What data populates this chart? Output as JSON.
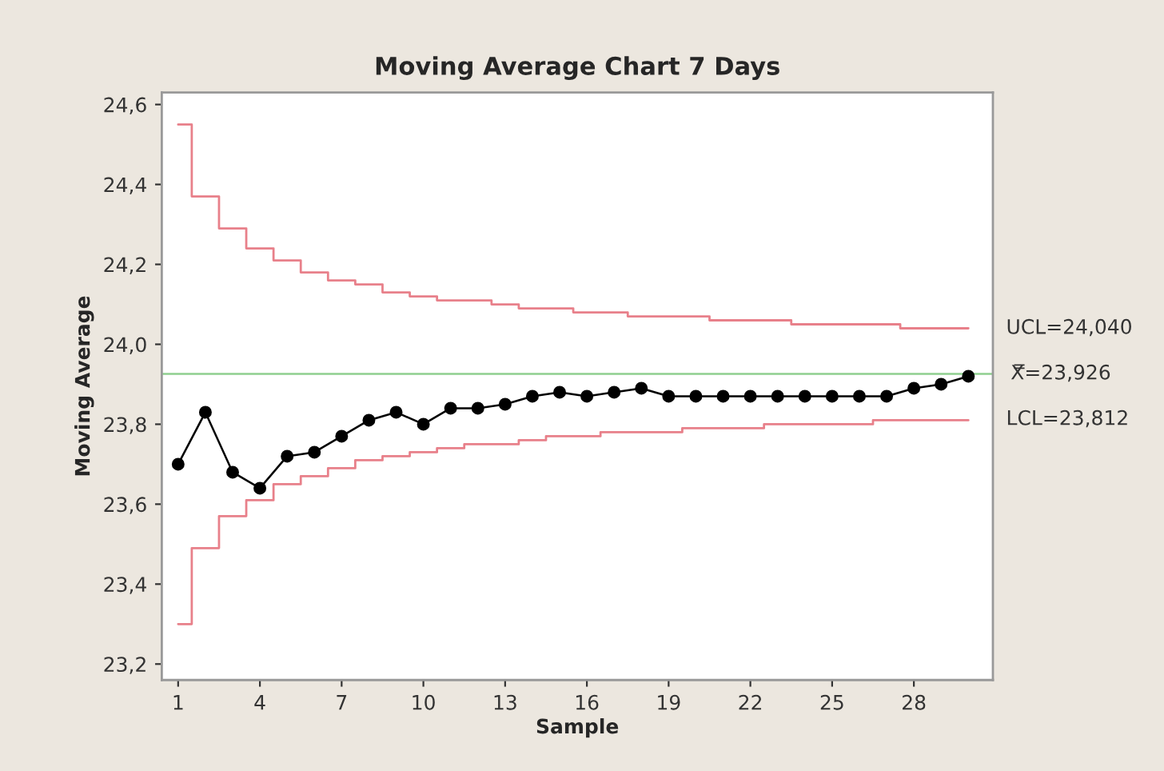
{
  "chart_data": {
    "type": "line",
    "title": "Moving Average Chart 7 Days",
    "xlabel": "Sample",
    "ylabel": "Moving Average",
    "x": [
      1,
      2,
      3,
      4,
      5,
      6,
      7,
      8,
      9,
      10,
      11,
      12,
      13,
      14,
      15,
      16,
      17,
      18,
      19,
      20,
      21,
      22,
      23,
      24,
      25,
      26,
      27,
      28,
      29,
      30
    ],
    "series": [
      {
        "type": "step",
        "color": "#e8808a",
        "line_style": "solid",
        "marker": "none",
        "values": [
          24.55,
          24.37,
          24.29,
          24.24,
          24.21,
          24.18,
          24.16,
          24.15,
          24.13,
          24.12,
          24.11,
          24.11,
          24.1,
          24.09,
          24.09,
          24.08,
          24.08,
          24.07,
          24.07,
          24.07,
          24.06,
          24.06,
          24.06,
          24.05,
          24.05,
          24.05,
          24.05,
          24.04,
          24.04,
          24.04
        ]
      },
      {
        "type": "step",
        "color": "#e8808a",
        "line_style": "solid",
        "marker": "none",
        "values": [
          23.3,
          23.49,
          23.57,
          23.61,
          23.65,
          23.67,
          23.69,
          23.71,
          23.72,
          23.73,
          23.74,
          23.75,
          23.75,
          23.76,
          23.77,
          23.77,
          23.78,
          23.78,
          23.78,
          23.79,
          23.79,
          23.79,
          23.8,
          23.8,
          23.8,
          23.8,
          23.81,
          23.81,
          23.81,
          23.81
        ]
      },
      {
        "type": "line",
        "color": "#000000",
        "line_style": "solid",
        "marker": "circle",
        "values": [
          23.7,
          23.83,
          23.68,
          23.64,
          23.72,
          23.73,
          23.77,
          23.81,
          23.83,
          23.8,
          23.84,
          23.84,
          23.85,
          23.87,
          23.88,
          23.87,
          23.88,
          23.89,
          23.87,
          23.87,
          23.87,
          23.87,
          23.87,
          23.87,
          23.87,
          23.87,
          23.87,
          23.89,
          23.9,
          23.92
        ]
      }
    ],
    "ref_lines": [
      {
        "axis": "y",
        "value": 23.926,
        "label": "X̿=23,926",
        "color": "#8fcf8f",
        "line_style": "solid"
      }
    ],
    "annotations": [
      {
        "text": "UCL=24,040",
        "x": 30,
        "y": 24.04
      },
      {
        "text": "LCL=23,812",
        "x": 30,
        "y": 23.812
      }
    ],
    "xlim": [
      0.4,
      30.9
    ],
    "ylim": [
      23.16,
      24.63
    ],
    "xticks": [
      1,
      4,
      7,
      10,
      13,
      16,
      19,
      22,
      25,
      28
    ],
    "yticks": [
      {
        "value": 23.2,
        "label": "23,2"
      },
      {
        "value": 23.4,
        "label": "23,4"
      },
      {
        "value": 23.6,
        "label": "23,6"
      },
      {
        "value": 23.8,
        "label": "23,8"
      },
      {
        "value": 24.0,
        "label": "24,0"
      },
      {
        "value": 24.2,
        "label": "24,2"
      },
      {
        "value": 24.4,
        "label": "24,4"
      },
      {
        "value": 24.6,
        "label": "24,6"
      }
    ],
    "grid": false,
    "legend": false
  }
}
